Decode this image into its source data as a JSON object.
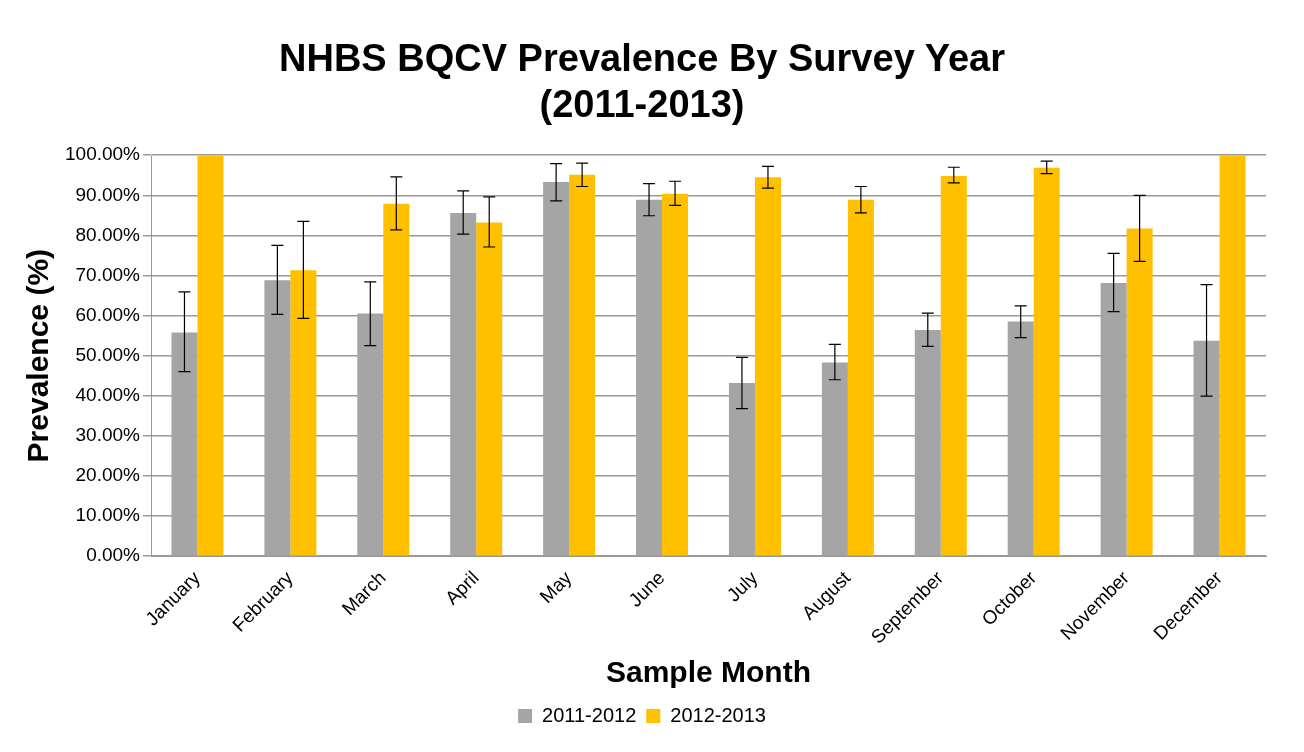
{
  "chart_data": {
    "type": "bar",
    "title": "NHBS BQCV Prevalence By Survey Year\n(2011-2013)",
    "xlabel": "Sample Month",
    "ylabel": "Prevalence (%)",
    "categories": [
      "January",
      "February",
      "March",
      "April",
      "May",
      "June",
      "July",
      "August",
      "September",
      "October",
      "November",
      "December"
    ],
    "series": [
      {
        "name": "2011-2012",
        "color": "#a5a5a5",
        "values": [
          55.8,
          68.8,
          60.5,
          85.6,
          93.3,
          88.9,
          43.2,
          48.3,
          56.4,
          58.5,
          68.1,
          53.7
        ],
        "errors": [
          [
            46.0,
            65.9
          ],
          [
            60.3,
            77.5
          ],
          [
            52.5,
            68.4
          ],
          [
            80.3,
            91.1
          ],
          [
            88.6,
            97.9
          ],
          [
            84.9,
            92.9
          ],
          [
            36.8,
            49.6
          ],
          [
            44.0,
            52.8
          ],
          [
            52.3,
            60.6
          ],
          [
            54.5,
            62.4
          ],
          [
            61.0,
            75.5
          ],
          [
            39.9,
            67.7
          ]
        ]
      },
      {
        "name": "2012-2013",
        "color": "#ffc000",
        "values": [
          100,
          71.3,
          87.9,
          83.2,
          95.1,
          90.4,
          94.5,
          88.9,
          94.8,
          96.9,
          81.7,
          100
        ],
        "errors": [
          null,
          [
            59.3,
            83.5
          ],
          [
            81.4,
            94.6
          ],
          [
            77.1,
            89.6
          ],
          [
            92.2,
            98.0
          ],
          [
            87.5,
            93.5
          ],
          [
            91.8,
            97.2
          ],
          [
            85.6,
            92.2
          ],
          [
            93.1,
            97.0
          ],
          [
            95.4,
            98.5
          ],
          [
            73.5,
            90.0
          ],
          null
        ]
      }
    ],
    "ylim": [
      0,
      100
    ],
    "yticks": [
      {
        "value": 0,
        "label": "0.00%"
      },
      {
        "value": 10,
        "label": "10.00%"
      },
      {
        "value": 20,
        "label": "20.00%"
      },
      {
        "value": 30,
        "label": "30.00%"
      },
      {
        "value": 40,
        "label": "40.00%"
      },
      {
        "value": 50,
        "label": "50.00%"
      },
      {
        "value": 60,
        "label": "60.00%"
      },
      {
        "value": 70,
        "label": "70.00%"
      },
      {
        "value": 80,
        "label": "80.00%"
      },
      {
        "value": 90,
        "label": "90.00%"
      },
      {
        "value": 100,
        "label": "100.00%"
      }
    ],
    "grid": "y",
    "legend": "bottom"
  }
}
